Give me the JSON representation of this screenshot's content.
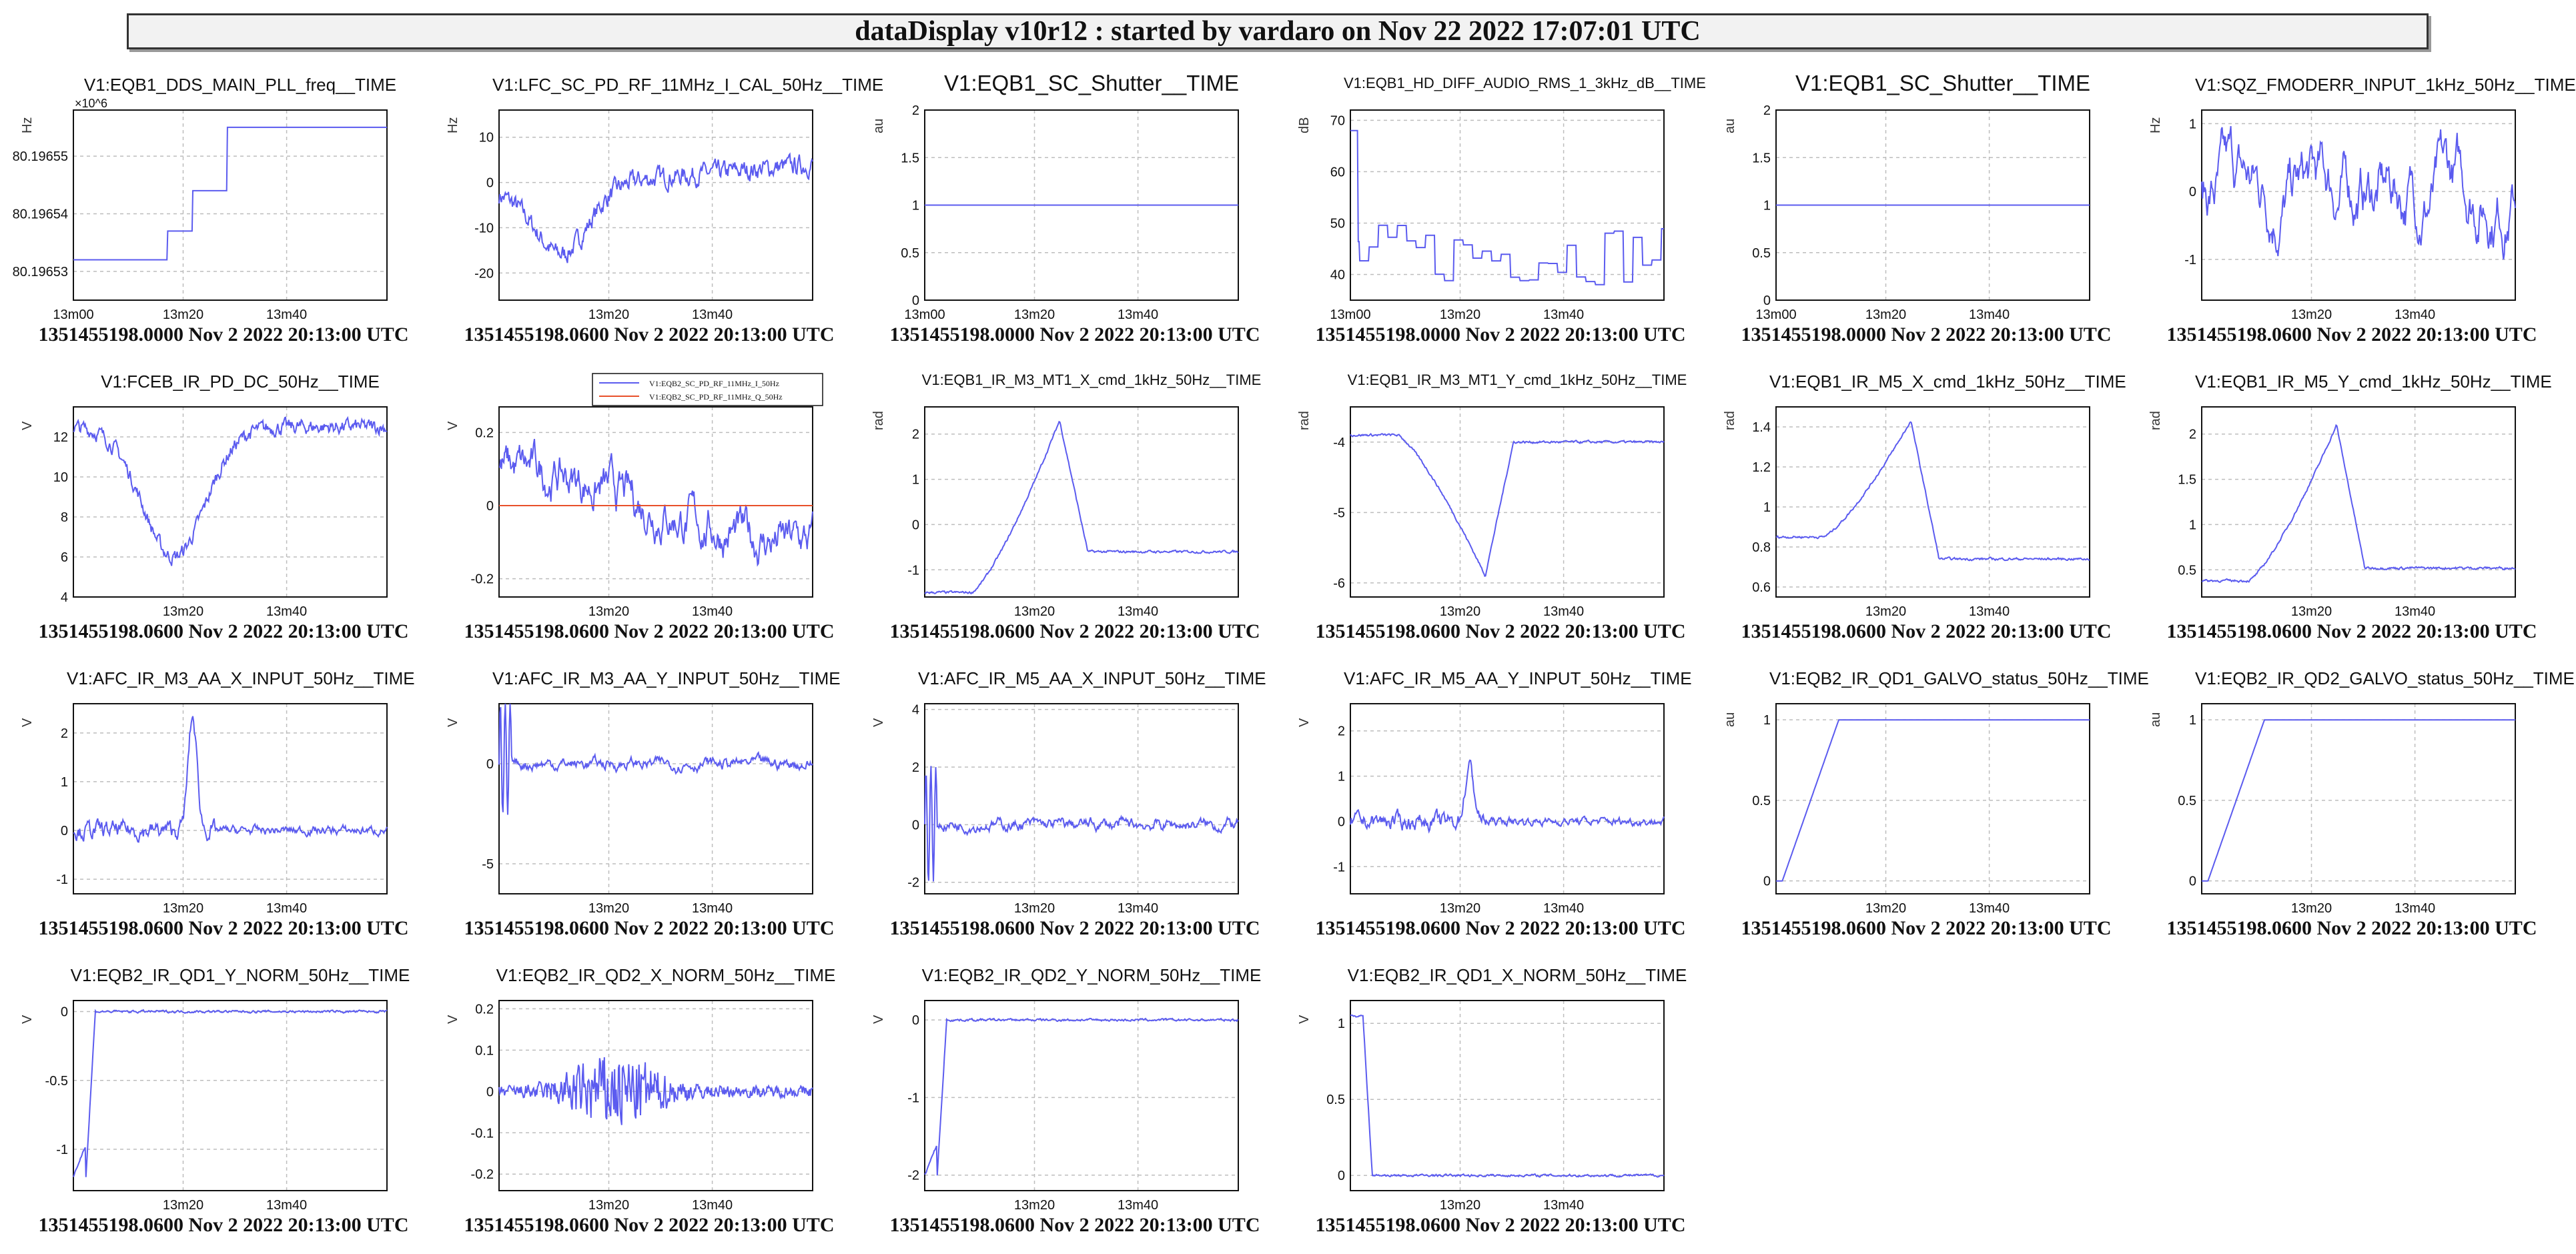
{
  "app_title": "dataDisplay v10r12 : started by vardaro on Nov 22 2022 17:07:01 UTC",
  "chart_data": [
    {
      "type": "line",
      "title": "V1:EQB1_DDS_MAIN_PLL_freq__TIME",
      "ylabel": "Hz",
      "exponent": "×10^6",
      "ylim": [
        80.196525,
        80.196558
      ],
      "yticks": [
        80.19653,
        80.19654,
        80.19655
      ],
      "ytick_labels": [
        "80.19653",
        "80.19654",
        "80.19655"
      ],
      "xticks": [
        "13m00",
        "13m20",
        "13m40"
      ],
      "shape": "steps",
      "footer": "1351455198.0000 Nov 2 2022 20:13:00 UTC"
    },
    {
      "type": "line",
      "title": "V1:LFC_SC_PD_RF_11MHz_I_CAL_50Hz__TIME",
      "ylabel": "Hz",
      "ylim": [
        -26,
        16
      ],
      "yticks": [
        -20,
        -10,
        0,
        10
      ],
      "xticks": [
        "13m20",
        "13m40"
      ],
      "shape": "noise_dip",
      "footer": "1351455198.0600 Nov 2 2022 20:13:00 UTC"
    },
    {
      "type": "line",
      "title": "V1:EQB1_SC_Shutter__TIME",
      "ylabel": "au",
      "ylim": [
        0,
        2
      ],
      "yticks": [
        0,
        0.5,
        1,
        1.5,
        2
      ],
      "xticks": [
        "13m00",
        "13m20",
        "13m40"
      ],
      "shape": "flat",
      "level": 1,
      "footer": "1351455198.0000 Nov 2 2022 20:13:00 UTC"
    },
    {
      "type": "line",
      "title": "V1:EQB1_HD_DIFF_AUDIO_RMS_1_3kHz_dB__TIME",
      "ylabel": "dB",
      "ylim": [
        35,
        72
      ],
      "yticks": [
        40,
        50,
        60,
        70
      ],
      "xticks": [
        "13m00",
        "13m20",
        "13m40"
      ],
      "shape": "steps_noise",
      "footer": "1351455198.0000 Nov 2 2022 20:13:00 UTC"
    },
    {
      "type": "line",
      "title": "V1:EQB1_SC_Shutter__TIME",
      "ylabel": "au",
      "ylim": [
        0,
        2
      ],
      "yticks": [
        0,
        0.5,
        1,
        1.5,
        2
      ],
      "xticks": [
        "13m00",
        "13m20",
        "13m40"
      ],
      "shape": "flat",
      "level": 1,
      "footer": "1351455198.0000 Nov 2 2022 20:13:00 UTC"
    },
    {
      "type": "line",
      "title": "V1:SQZ_FMODERR_INPUT_1kHz_50Hz__TIME",
      "ylabel": "Hz",
      "ylim": [
        -1.6,
        1.2
      ],
      "yticks": [
        -1,
        0,
        1
      ],
      "xticks": [
        "13m20",
        "13m40"
      ],
      "shape": "wavy",
      "footer": "1351455198.0600 Nov 2 2022 20:13:00 UTC"
    },
    {
      "type": "line",
      "title": "V1:FCEB_IR_PD_DC_50Hz__TIME",
      "ylabel": "V",
      "ylim": [
        4,
        13.5
      ],
      "yticks": [
        4,
        6,
        8,
        10,
        12
      ],
      "xticks": [
        "13m20",
        "13m40"
      ],
      "shape": "valley",
      "footer": "1351455198.0600 Nov 2 2022 20:13:00 UTC"
    },
    {
      "type": "line",
      "title": "",
      "ylabel": "V",
      "ylim": [
        -0.25,
        0.27
      ],
      "yticks": [
        -0.2,
        0,
        0.2
      ],
      "xticks": [
        "13m20",
        "13m40"
      ],
      "shape": "two_series",
      "legend": [
        "V1:EQB2_SC_PD_RF_11MHz_I_50Hz",
        "V1:EQB2_SC_PD_RF_11MHz_Q_50Hz"
      ],
      "legend_colors": [
        "#5b5bef",
        "#e8502a"
      ],
      "footer": "1351455198.0600 Nov 2 2022 20:13:00 UTC"
    },
    {
      "type": "line",
      "title": "V1:EQB1_IR_M3_MT1_X_cmd_1kHz_50Hz__TIME",
      "ylabel": "rad",
      "ylim": [
        -1.6,
        2.6
      ],
      "yticks": [
        -1,
        0,
        1,
        2
      ],
      "xticks": [
        "13m20",
        "13m40"
      ],
      "shape": "bump",
      "base": -1.5,
      "peak": 2.3,
      "settle": -0.6,
      "footer": "1351455198.0600 Nov 2 2022 20:13:00 UTC"
    },
    {
      "type": "line",
      "title": "V1:EQB1_IR_M3_MT1_Y_cmd_1kHz_50Hz__TIME",
      "ylabel": "rad",
      "ylim": [
        -6.2,
        -3.5
      ],
      "yticks": [
        -6,
        -5,
        -4
      ],
      "xticks": [
        "13m20",
        "13m40"
      ],
      "shape": "bump",
      "base": -3.9,
      "peak": -5.9,
      "settle": -4.0,
      "footer": "1351455198.0600 Nov 2 2022 20:13:00 UTC"
    },
    {
      "type": "line",
      "title": "V1:EQB1_IR_M5_X_cmd_1kHz_50Hz__TIME",
      "ylabel": "rad",
      "ylim": [
        0.55,
        1.5
      ],
      "yticks": [
        0.6,
        0.8,
        1,
        1.2,
        1.4
      ],
      "xticks": [
        "13m20",
        "13m40"
      ],
      "shape": "bump",
      "base": 0.85,
      "peak": 1.43,
      "settle": 0.74,
      "footer": "1351455198.0600 Nov 2 2022 20:13:00 UTC"
    },
    {
      "type": "line",
      "title": "V1:EQB1_IR_M5_Y_cmd_1kHz_50Hz__TIME",
      "ylabel": "rad",
      "ylim": [
        0.2,
        2.3
      ],
      "yticks": [
        0.5,
        1,
        1.5,
        2
      ],
      "xticks": [
        "13m20",
        "13m40"
      ],
      "shape": "bump",
      "base": 0.38,
      "peak": 2.1,
      "settle": 0.52,
      "footer": "1351455198.0600 Nov 2 2022 20:13:00 UTC"
    },
    {
      "type": "line",
      "title": "V1:AFC_IR_M3_AA_X_INPUT_50Hz__TIME",
      "ylabel": "V",
      "ylim": [
        -1.3,
        2.6
      ],
      "yticks": [
        -1,
        0,
        1,
        2
      ],
      "xticks": [
        "13m20",
        "13m40"
      ],
      "shape": "spike",
      "spike": 2.3,
      "footer": "1351455198.0600 Nov 2 2022 20:13:00 UTC"
    },
    {
      "type": "line",
      "title": "V1:AFC_IR_M3_AA_Y_INPUT_50Hz__TIME",
      "ylabel": "V",
      "ylim": [
        -6.5,
        3
      ],
      "yticks": [
        -5,
        0
      ],
      "xticks": [
        "13m20",
        "13m40"
      ],
      "shape": "transient",
      "footer": "1351455198.0600 Nov 2 2022 20:13:00 UTC"
    },
    {
      "type": "line",
      "title": "V1:AFC_IR_M5_AA_X_INPUT_50Hz__TIME",
      "ylabel": "V",
      "ylim": [
        -2.4,
        4.2
      ],
      "yticks": [
        -2,
        0,
        2,
        4
      ],
      "xticks": [
        "13m20",
        "13m40"
      ],
      "shape": "transient",
      "footer": "1351455198.0600 Nov 2 2022 20:13:00 UTC"
    },
    {
      "type": "line",
      "title": "V1:AFC_IR_M5_AA_Y_INPUT_50Hz__TIME",
      "ylabel": "V",
      "ylim": [
        -1.6,
        2.6
      ],
      "yticks": [
        -1,
        0,
        1,
        2
      ],
      "xticks": [
        "13m20",
        "13m40"
      ],
      "shape": "spike",
      "spike": 1.2,
      "footer": "1351455198.0600 Nov 2 2022 20:13:00 UTC"
    },
    {
      "type": "line",
      "title": "V1:EQB2_IR_QD1_GALVO_status_50Hz__TIME",
      "ylabel": "au",
      "ylim": [
        -0.08,
        1.1
      ],
      "yticks": [
        0,
        0.5,
        1
      ],
      "xticks": [
        "13m20",
        "13m40"
      ],
      "shape": "ramp",
      "footer": "1351455198.0600 Nov 2 2022 20:13:00 UTC"
    },
    {
      "type": "line",
      "title": "V1:EQB2_IR_QD2_GALVO_status_50Hz__TIME",
      "ylabel": "au",
      "ylim": [
        -0.08,
        1.1
      ],
      "yticks": [
        0,
        0.5,
        1
      ],
      "xticks": [
        "13m20",
        "13m40"
      ],
      "shape": "ramp",
      "footer": "1351455198.0600 Nov 2 2022 20:13:00 UTC"
    },
    {
      "type": "line",
      "title": "V1:EQB2_IR_QD1_Y_NORM_50Hz__TIME",
      "ylabel": "V",
      "ylim": [
        -1.3,
        0.08
      ],
      "yticks": [
        -1,
        -0.5,
        0
      ],
      "xticks": [
        "13m20",
        "13m40"
      ],
      "shape": "step_up",
      "base": -1.2,
      "settle": 0,
      "footer": "1351455198.0600 Nov 2 2022 20:13:00 UTC"
    },
    {
      "type": "line",
      "title": "V1:EQB2_IR_QD2_X_NORM_50Hz__TIME",
      "ylabel": "V",
      "ylim": [
        -0.24,
        0.22
      ],
      "yticks": [
        -0.2,
        -0.1,
        0,
        0.1,
        0.2
      ],
      "xticks": [
        "13m20",
        "13m40"
      ],
      "shape": "burst",
      "footer": "1351455198.0600 Nov 2 2022 20:13:00 UTC"
    },
    {
      "type": "line",
      "title": "V1:EQB2_IR_QD2_Y_NORM_50Hz__TIME",
      "ylabel": "V",
      "ylim": [
        -2.2,
        0.25
      ],
      "yticks": [
        -2,
        -1,
        0
      ],
      "xticks": [
        "13m20",
        "13m40"
      ],
      "shape": "step_up",
      "base": -2,
      "settle": 0,
      "footer": "1351455198.0600 Nov 2 2022 20:13:00 UTC"
    },
    {
      "type": "line",
      "title": "V1:EQB2_IR_QD1_X_NORM_50Hz__TIME",
      "ylabel": "V",
      "ylim": [
        -0.1,
        1.15
      ],
      "yticks": [
        0,
        0.5,
        1
      ],
      "xticks": [
        "13m20",
        "13m40"
      ],
      "shape": "step_down",
      "base": 1.05,
      "settle": 0,
      "footer": "1351455198.0600 Nov 2 2022 20:13:00 UTC"
    }
  ]
}
